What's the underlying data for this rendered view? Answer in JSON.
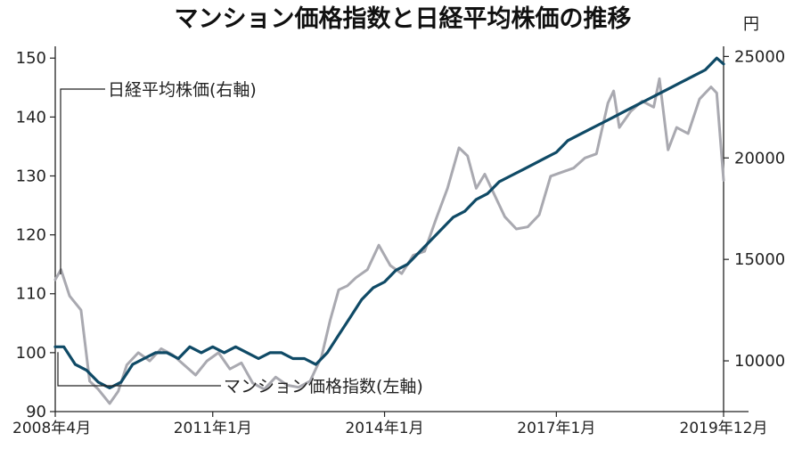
{
  "chart_data": {
    "type": "line",
    "title": "マンション価格指数と日経平均株価の推移",
    "x_start": "2008年4月",
    "x_end": "2019年12月",
    "x_tick_labels": [
      "2008年4月",
      "2011年1月",
      "2014年1月",
      "2017年1月",
      "2019年12月"
    ],
    "x_tick_positions_years": [
      2008.25,
      2011.0,
      2014.0,
      2017.0,
      2019.92
    ],
    "x_range_years": [
      2008.25,
      2019.92
    ],
    "y_left": {
      "label": "マンション価格指数(左軸)",
      "ylim": [
        90,
        152
      ],
      "ticks": [
        90,
        100,
        110,
        120,
        130,
        140,
        150
      ]
    },
    "y_right": {
      "unit": "円",
      "ylim": [
        7500,
        25500
      ],
      "ticks": [
        10000,
        15000,
        20000,
        25000
      ]
    },
    "series": [
      {
        "name": "マンション価格指数(左軸)",
        "axis": "left",
        "color": "#0f4a66",
        "x": [
          2008.25,
          2008.4,
          2008.6,
          2008.8,
          2009.0,
          2009.2,
          2009.4,
          2009.6,
          2009.8,
          2010.0,
          2010.2,
          2010.4,
          2010.6,
          2010.8,
          2011.0,
          2011.2,
          2011.4,
          2011.6,
          2011.8,
          2012.0,
          2012.2,
          2012.4,
          2012.6,
          2012.8,
          2013.0,
          2013.2,
          2013.4,
          2013.6,
          2013.8,
          2014.0,
          2014.2,
          2014.4,
          2014.6,
          2014.8,
          2015.0,
          2015.2,
          2015.4,
          2015.6,
          2015.8,
          2016.0,
          2016.2,
          2016.4,
          2016.6,
          2016.8,
          2017.0,
          2017.2,
          2017.4,
          2017.6,
          2017.8,
          2018.0,
          2018.2,
          2018.4,
          2018.6,
          2018.8,
          2019.0,
          2019.2,
          2019.4,
          2019.6,
          2019.8,
          2019.92
        ],
        "values": [
          101,
          101,
          98,
          97,
          95,
          94,
          95,
          98,
          99,
          100,
          100,
          99,
          101,
          100,
          101,
          100,
          101,
          100,
          99,
          100,
          100,
          99,
          99,
          98,
          100,
          103,
          106,
          109,
          111,
          112,
          114,
          115,
          117,
          119,
          121,
          123,
          124,
          126,
          127,
          129,
          130,
          131,
          132,
          133,
          134,
          136,
          137,
          138,
          139,
          140,
          141,
          142,
          143,
          144,
          145,
          146,
          147,
          148,
          150,
          149
        ]
      },
      {
        "name": "日経平均株価(右軸)",
        "axis": "right",
        "color": "#a9a9b0",
        "x": [
          2008.25,
          2008.35,
          2008.5,
          2008.7,
          2008.85,
          2009.0,
          2009.2,
          2009.35,
          2009.5,
          2009.7,
          2009.9,
          2010.1,
          2010.3,
          2010.5,
          2010.7,
          2010.9,
          2011.1,
          2011.3,
          2011.5,
          2011.7,
          2011.9,
          2012.1,
          2012.3,
          2012.5,
          2012.7,
          2012.9,
          2013.05,
          2013.2,
          2013.35,
          2013.5,
          2013.7,
          2013.9,
          2014.1,
          2014.3,
          2014.5,
          2014.7,
          2014.9,
          2015.1,
          2015.3,
          2015.45,
          2015.6,
          2015.75,
          2015.9,
          2016.1,
          2016.3,
          2016.5,
          2016.7,
          2016.9,
          2017.1,
          2017.3,
          2017.5,
          2017.7,
          2017.9,
          2018.0,
          2018.1,
          2018.3,
          2018.5,
          2018.7,
          2018.8,
          2018.95,
          2019.1,
          2019.3,
          2019.5,
          2019.7,
          2019.8,
          2019.92
        ],
        "values": [
          14000,
          14500,
          13200,
          12500,
          9000,
          8600,
          7900,
          8500,
          9800,
          10400,
          10000,
          10600,
          10300,
          9800,
          9300,
          10000,
          10400,
          9600,
          9900,
          8900,
          8600,
          9200,
          8800,
          8700,
          9000,
          10200,
          12000,
          13500,
          13700,
          14100,
          14500,
          15700,
          14700,
          14300,
          15200,
          15400,
          17000,
          18500,
          20500,
          20100,
          18500,
          19200,
          18300,
          17100,
          16500,
          16600,
          17200,
          19100,
          19300,
          19500,
          20000,
          20200,
          22700,
          23300,
          21500,
          22300,
          22800,
          22500,
          23900,
          20400,
          21500,
          21200,
          22900,
          23500,
          23200,
          18900
        ]
      }
    ],
    "annotations": [
      {
        "text": "日経平均株価(右軸)",
        "series": "日経平均株価(右軸)"
      },
      {
        "text": "マンション価格指数(左軸)",
        "series": "マンション価格指数(左軸)"
      }
    ]
  }
}
